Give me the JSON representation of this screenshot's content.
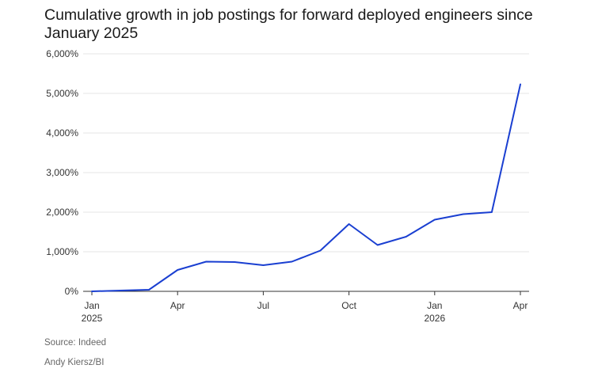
{
  "chart_data": {
    "type": "line",
    "title": "Cumulative growth in job postings for forward deployed engineers since January 2025",
    "xlabel": "",
    "ylabel": "",
    "ylim": [
      0,
      6000
    ],
    "yticks": [
      0,
      1000,
      2000,
      3000,
      4000,
      5000,
      6000
    ],
    "ytick_labels": [
      "0%",
      "1,000%",
      "2,000%",
      "3,000%",
      "4,000%",
      "5,000%",
      "6,000%"
    ],
    "xticks": [
      {
        "x": "2025-01",
        "label": "Jan",
        "sublabel": "2025"
      },
      {
        "x": "2025-04",
        "label": "Apr",
        "sublabel": ""
      },
      {
        "x": "2025-07",
        "label": "Jul",
        "sublabel": ""
      },
      {
        "x": "2025-10",
        "label": "Oct",
        "sublabel": ""
      },
      {
        "x": "2026-01",
        "label": "Jan",
        "sublabel": "2026"
      },
      {
        "x": "2026-04",
        "label": "Apr",
        "sublabel": ""
      }
    ],
    "grid": true,
    "line_color": "#1a3fd1",
    "series": [
      {
        "x": [
          "2025-01",
          "2025-02",
          "2025-03",
          "2025-04",
          "2025-05",
          "2025-06",
          "2025-07",
          "2025-08",
          "2025-09",
          "2025-10",
          "2025-11",
          "2025-12",
          "2026-01",
          "2026-02",
          "2026-03",
          "2026-04"
        ],
        "values": [
          0,
          20,
          40,
          540,
          750,
          740,
          660,
          750,
          1030,
          1700,
          1170,
          1380,
          1810,
          1950,
          2000,
          5230
        ]
      }
    ]
  },
  "footer": {
    "source": "Source: Indeed",
    "credit": "Andy Kiersz/BI"
  }
}
